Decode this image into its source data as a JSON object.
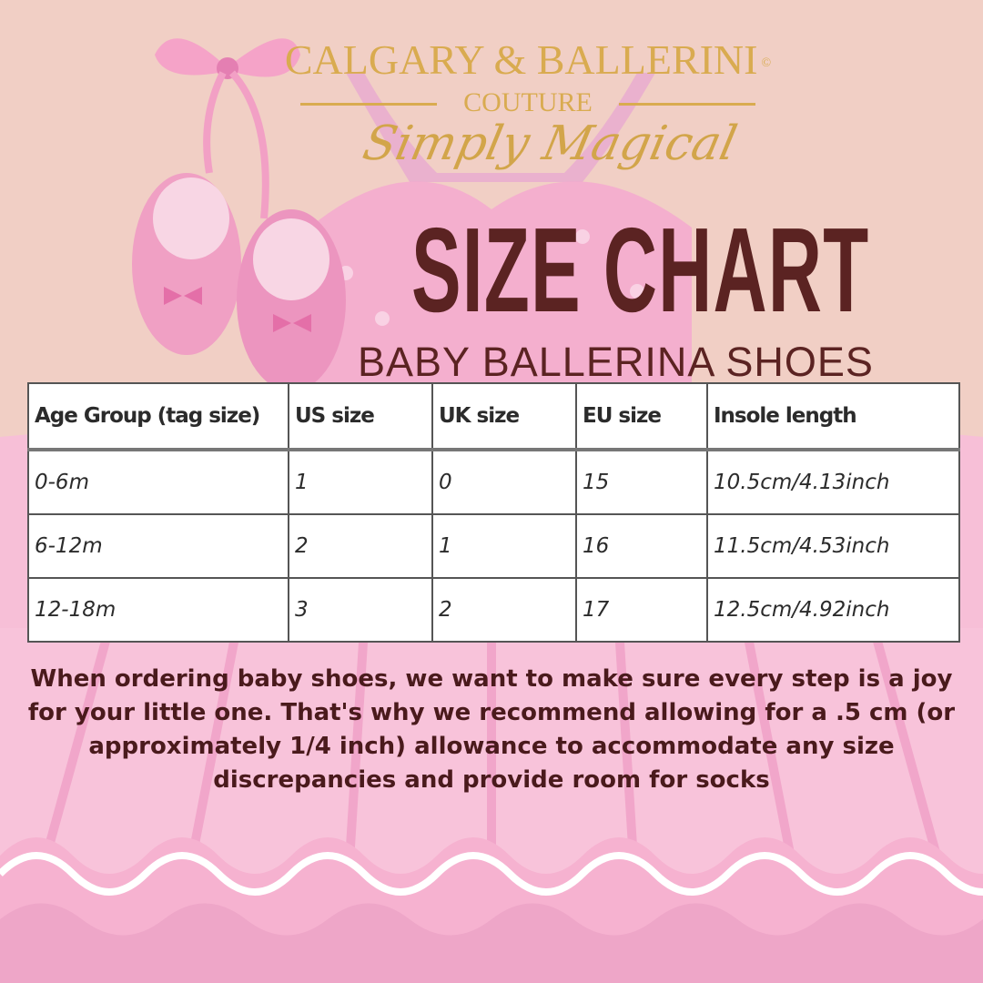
{
  "brand": {
    "name": "CALGARY & BALLERINI",
    "copyright": "©",
    "sub": "COUTURE",
    "tagline": "Simply Magical"
  },
  "title": "SIZE CHART",
  "subtitle": "BABY BALLERINA SHOES",
  "table": {
    "headers": [
      "Age Group (tag size)",
      "US size",
      "UK size",
      "EU size",
      "Insole length"
    ],
    "rows": [
      [
        "0-6m",
        "1",
        "0",
        "15",
        "10.5cm/4.13inch"
      ],
      [
        "6-12m",
        "2",
        "1",
        "16",
        "11.5cm/4.53inch"
      ],
      [
        "12-18m",
        "3",
        "2",
        "17",
        "12.5cm/4.92inch"
      ]
    ]
  },
  "note": "When ordering baby shoes, we want to make sure every step is a joy for your little one. That's why we recommend allowing for a .5 cm (or approximately 1/4 inch) allowance to accommodate any size discrepancies and provide room for socks",
  "colors": {
    "background": "#f1cfc5",
    "title": "#5b2322",
    "brand_gold": "#d9ab50",
    "pink": "#f0a6c8"
  }
}
